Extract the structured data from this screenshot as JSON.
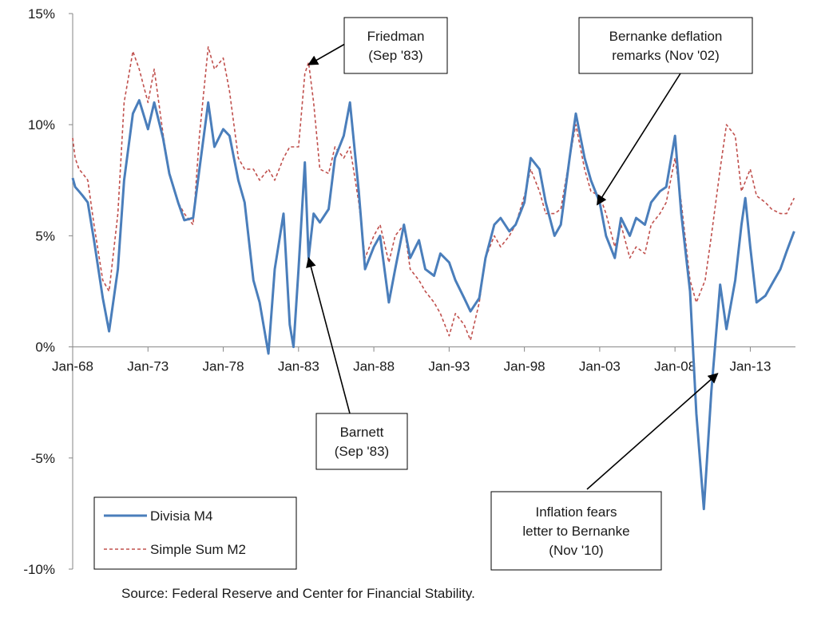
{
  "chart_data": {
    "type": "line",
    "x_unit": "months since Jan-68",
    "xlim": [
      "Jan-68",
      "Dec-15"
    ],
    "ylim": [
      -10,
      15
    ],
    "y_ticks": [
      "15%",
      "10%",
      "5%",
      "0%",
      "-5%",
      "-10%"
    ],
    "x_ticks": [
      "Jan-68",
      "Jan-73",
      "Jan-78",
      "Jan-83",
      "Jan-88",
      "Jan-93",
      "Jan-98",
      "Jan-03",
      "Jan-08",
      "Jan-13"
    ],
    "series": [
      {
        "name": "Divisia M4",
        "color": "#4a7ebb",
        "style": "solid",
        "points": [
          [
            "Jan-68",
            7.6
          ],
          [
            "Mar-68",
            7.2
          ],
          [
            "Jun-68",
            7.0
          ],
          [
            "Sep-68",
            6.8
          ],
          [
            "Jan-69",
            6.5
          ],
          [
            "Jun-69",
            4.8
          ],
          [
            "Jan-70",
            2.2
          ],
          [
            "Jun-70",
            0.7
          ],
          [
            "Jan-71",
            3.5
          ],
          [
            "Jun-71",
            7.5
          ],
          [
            "Jan-72",
            10.5
          ],
          [
            "Jun-72",
            11.1
          ],
          [
            "Jan-73",
            9.8
          ],
          [
            "Jun-73",
            11.0
          ],
          [
            "Jan-74",
            9.4
          ],
          [
            "Jun-74",
            7.8
          ],
          [
            "Jan-75",
            6.5
          ],
          [
            "Jun-75",
            5.7
          ],
          [
            "Jan-76",
            5.8
          ],
          [
            "Jun-76",
            8.0
          ],
          [
            "Jan-77",
            11.0
          ],
          [
            "Jun-77",
            9.0
          ],
          [
            "Jan-78",
            9.8
          ],
          [
            "Jun-78",
            9.5
          ],
          [
            "Jan-79",
            7.5
          ],
          [
            "Jun-79",
            6.5
          ],
          [
            "Jan-80",
            3.0
          ],
          [
            "Jun-80",
            2.0
          ],
          [
            "Jan-81",
            -0.3
          ],
          [
            "Jun-81",
            3.5
          ],
          [
            "Jan-82",
            6.0
          ],
          [
            "Jun-82",
            1.0
          ],
          [
            "Sep-82",
            0.0
          ],
          [
            "Jan-83",
            3.5
          ],
          [
            "Jun-83",
            8.3
          ],
          [
            "Sep-83",
            4.0
          ],
          [
            "Jan-84",
            6.0
          ],
          [
            "Jun-84",
            5.6
          ],
          [
            "Jan-85",
            6.2
          ],
          [
            "Jun-85",
            8.5
          ],
          [
            "Jan-86",
            9.5
          ],
          [
            "Jun-86",
            11.0
          ],
          [
            "Jan-87",
            7.0
          ],
          [
            "Jun-87",
            3.5
          ],
          [
            "Jan-88",
            4.5
          ],
          [
            "Jun-88",
            5.0
          ],
          [
            "Jan-89",
            2.0
          ],
          [
            "Jun-89",
            3.5
          ],
          [
            "Jan-90",
            5.5
          ],
          [
            "Jun-90",
            4.0
          ],
          [
            "Jan-91",
            4.8
          ],
          [
            "Jun-91",
            3.5
          ],
          [
            "Jan-92",
            3.2
          ],
          [
            "Jun-92",
            4.2
          ],
          [
            "Jan-93",
            3.8
          ],
          [
            "Jun-93",
            3.0
          ],
          [
            "Jan-94",
            2.2
          ],
          [
            "Jun-94",
            1.6
          ],
          [
            "Jan-95",
            2.2
          ],
          [
            "Jun-95",
            4.0
          ],
          [
            "Jan-96",
            5.5
          ],
          [
            "Jun-96",
            5.8
          ],
          [
            "Jan-97",
            5.2
          ],
          [
            "Jun-97",
            5.5
          ],
          [
            "Jan-98",
            6.5
          ],
          [
            "Jun-98",
            8.5
          ],
          [
            "Jan-99",
            8.0
          ],
          [
            "Jun-99",
            6.5
          ],
          [
            "Jan-00",
            5.0
          ],
          [
            "Jun-00",
            5.5
          ],
          [
            "Jan-01",
            8.5
          ],
          [
            "Jun-01",
            10.5
          ],
          [
            "Jan-02",
            8.5
          ],
          [
            "Jun-02",
            7.5
          ],
          [
            "Jan-03",
            6.5
          ],
          [
            "Jun-03",
            5.0
          ],
          [
            "Jan-04",
            4.0
          ],
          [
            "Jun-04",
            5.8
          ],
          [
            "Jan-05",
            5.0
          ],
          [
            "Jun-05",
            5.8
          ],
          [
            "Jan-06",
            5.5
          ],
          [
            "Jun-06",
            6.5
          ],
          [
            "Jan-07",
            7.0
          ],
          [
            "Jun-07",
            7.2
          ],
          [
            "Jan-08",
            9.5
          ],
          [
            "Jun-08",
            6.0
          ],
          [
            "Jan-09",
            2.5
          ],
          [
            "Jun-09",
            -3.0
          ],
          [
            "Dec-09",
            -7.3
          ],
          [
            "Jun-10",
            -2.0
          ],
          [
            "Jan-11",
            2.8
          ],
          [
            "Jun-11",
            0.8
          ],
          [
            "Jan-12",
            3.0
          ],
          [
            "Jun-12",
            5.5
          ],
          [
            "Sep-12",
            6.7
          ],
          [
            "Jan-13",
            4.5
          ],
          [
            "Jun-13",
            2.0
          ],
          [
            "Jan-14",
            2.3
          ],
          [
            "Jun-14",
            2.8
          ],
          [
            "Jan-15",
            3.5
          ],
          [
            "Jun-15",
            4.3
          ],
          [
            "Dec-15",
            5.2
          ]
        ]
      },
      {
        "name": "Simple Sum M2",
        "color": "#c0504d",
        "style": "dashed",
        "points": [
          [
            "Jan-68",
            9.4
          ],
          [
            "Mar-68",
            8.5
          ],
          [
            "Jun-68",
            8.0
          ],
          [
            "Sep-68",
            7.8
          ],
          [
            "Jan-69",
            7.5
          ],
          [
            "Jun-69",
            5.5
          ],
          [
            "Jan-70",
            3.0
          ],
          [
            "Jun-70",
            2.5
          ],
          [
            "Jan-71",
            6.0
          ],
          [
            "Jun-71",
            11.0
          ],
          [
            "Jan-72",
            13.3
          ],
          [
            "Jun-72",
            12.5
          ],
          [
            "Jan-73",
            11.0
          ],
          [
            "Jun-73",
            12.5
          ],
          [
            "Jan-74",
            9.6
          ],
          [
            "Jun-74",
            7.8
          ],
          [
            "Jan-75",
            6.5
          ],
          [
            "Jun-75",
            6.0
          ],
          [
            "Jan-76",
            5.5
          ],
          [
            "Jun-76",
            9.5
          ],
          [
            "Jan-77",
            13.5
          ],
          [
            "Jun-77",
            12.5
          ],
          [
            "Jan-78",
            13.0
          ],
          [
            "Jun-78",
            11.5
          ],
          [
            "Jan-79",
            8.5
          ],
          [
            "Jun-79",
            8.0
          ],
          [
            "Jan-80",
            8.0
          ],
          [
            "Jun-80",
            7.5
          ],
          [
            "Jan-81",
            8.0
          ],
          [
            "Jun-81",
            7.5
          ],
          [
            "Jan-82",
            8.5
          ],
          [
            "Jun-82",
            9.0
          ],
          [
            "Jan-83",
            9.0
          ],
          [
            "Jun-83",
            12.3
          ],
          [
            "Sep-83",
            12.8
          ],
          [
            "Jan-84",
            11.0
          ],
          [
            "Jun-84",
            8.0
          ],
          [
            "Jan-85",
            7.8
          ],
          [
            "Jun-85",
            9.0
          ],
          [
            "Jan-86",
            8.5
          ],
          [
            "Jun-86",
            9.0
          ],
          [
            "Jan-87",
            6.5
          ],
          [
            "Jun-87",
            4.0
          ],
          [
            "Jan-88",
            5.0
          ],
          [
            "Jun-88",
            5.5
          ],
          [
            "Jan-89",
            3.8
          ],
          [
            "Jun-89",
            5.0
          ],
          [
            "Jan-90",
            5.5
          ],
          [
            "Jun-90",
            3.5
          ],
          [
            "Jan-91",
            3.0
          ],
          [
            "Jun-91",
            2.5
          ],
          [
            "Jan-92",
            2.0
          ],
          [
            "Jun-92",
            1.5
          ],
          [
            "Jan-93",
            0.5
          ],
          [
            "Jun-93",
            1.5
          ],
          [
            "Jan-94",
            1.0
          ],
          [
            "Jun-94",
            0.3
          ],
          [
            "Jan-95",
            2.0
          ],
          [
            "Jun-95",
            4.0
          ],
          [
            "Jan-96",
            5.0
          ],
          [
            "Jun-96",
            4.5
          ],
          [
            "Jan-97",
            5.0
          ],
          [
            "Jun-97",
            5.5
          ],
          [
            "Jan-98",
            6.8
          ],
          [
            "Jun-98",
            8.0
          ],
          [
            "Jan-99",
            7.0
          ],
          [
            "Jun-99",
            6.0
          ],
          [
            "Jan-00",
            6.0
          ],
          [
            "Jun-00",
            6.2
          ],
          [
            "Jan-01",
            8.5
          ],
          [
            "Jun-01",
            10.0
          ],
          [
            "Jan-02",
            8.0
          ],
          [
            "Jun-02",
            7.0
          ],
          [
            "Jan-03",
            6.8
          ],
          [
            "Jun-03",
            6.0
          ],
          [
            "Jan-04",
            4.5
          ],
          [
            "Jun-04",
            5.5
          ],
          [
            "Jan-05",
            4.0
          ],
          [
            "Jun-05",
            4.5
          ],
          [
            "Jan-06",
            4.2
          ],
          [
            "Jun-06",
            5.5
          ],
          [
            "Jan-07",
            6.0
          ],
          [
            "Jun-07",
            6.5
          ],
          [
            "Jan-08",
            8.5
          ],
          [
            "Jun-08",
            6.5
          ],
          [
            "Jan-09",
            3.0
          ],
          [
            "Jun-09",
            2.0
          ],
          [
            "Jan-10",
            3.0
          ],
          [
            "Jun-10",
            5.0
          ],
          [
            "Jan-11",
            8.0
          ],
          [
            "Jun-11",
            10.0
          ],
          [
            "Jan-12",
            9.5
          ],
          [
            "Jun-12",
            7.0
          ],
          [
            "Jan-13",
            8.0
          ],
          [
            "Jun-13",
            6.8
          ],
          [
            "Jan-14",
            6.5
          ],
          [
            "Jun-14",
            6.2
          ],
          [
            "Jan-15",
            6.0
          ],
          [
            "Jun-15",
            6.0
          ],
          [
            "Dec-15",
            6.7
          ]
        ]
      }
    ],
    "legend": {
      "placement": "bottom-left",
      "items": [
        {
          "label": "Divisia M4"
        },
        {
          "label": "Simple Sum M2"
        }
      ]
    },
    "annotations": [
      {
        "lines": [
          "Friedman",
          "(Sep '83)"
        ],
        "x": "Sep-83",
        "y": 12.7
      },
      {
        "lines": [
          "Barnett",
          "(Sep '83)"
        ],
        "x": "Sep-83",
        "y": 4.0
      },
      {
        "lines": [
          "Bernanke deflation",
          "remarks (Nov '02)"
        ],
        "x": "Nov-02",
        "y": 6.4
      },
      {
        "lines": [
          "Inflation fears",
          "letter to Bernanke",
          "(Nov '10)"
        ],
        "x": "Nov-10",
        "y": -1.2
      }
    ],
    "source": "Source: Federal Reserve and Center for Financial Stability."
  }
}
